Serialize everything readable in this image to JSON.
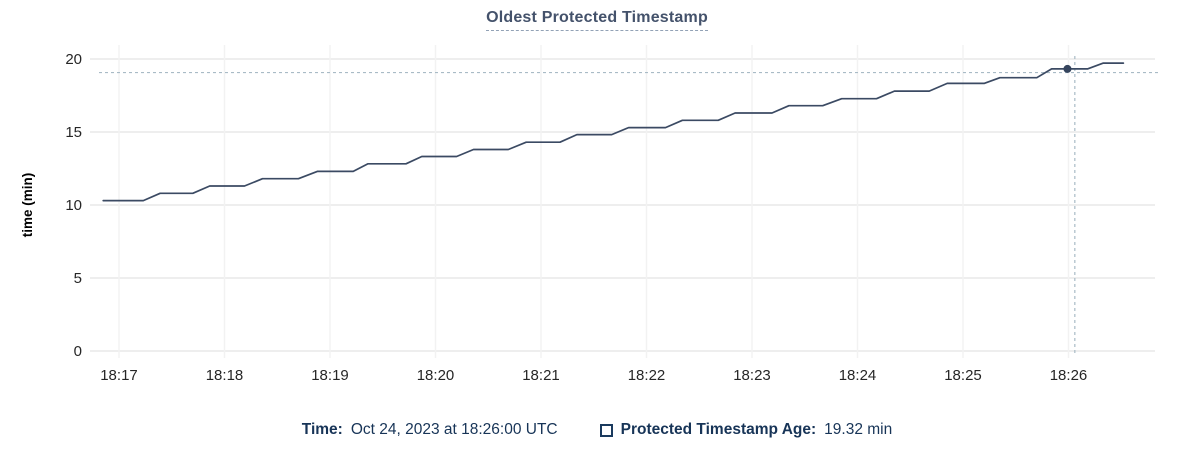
{
  "title": "Oldest Protected Timestamp",
  "y_axis_label": "time (min)",
  "legend": {
    "time_label": "Time:",
    "time_value": "Oct 24, 2023 at 18:26:00 UTC",
    "series_label": "Protected Timestamp Age:",
    "series_value": "19.32 min"
  },
  "colors": {
    "line": "#3b4a63",
    "marker": "#35445d",
    "title_text": "#44526b",
    "legend_text": "#173457",
    "crosshair": "#a9bbc6",
    "grid_horizontal": "#e9e9e9",
    "grid_vertical": "#f2f2f2",
    "tick_text": "#262626",
    "axis_label_text": "#000000"
  },
  "chart_data": {
    "type": "line",
    "title": "Oldest Protected Timestamp",
    "xlabel": "",
    "ylabel": "time (min)",
    "ylim": [
      0,
      20
    ],
    "yticks": [
      0,
      5,
      10,
      15,
      20
    ],
    "xtick_labels": [
      "18:17",
      "18:18",
      "18:19",
      "18:20",
      "18:21",
      "18:22",
      "18:23",
      "18:24",
      "18:25",
      "18:26"
    ],
    "x_unit": "minutes after 18:17 UTC",
    "grid": true,
    "legend_position": "bottom",
    "series": [
      {
        "name": "Protected Timestamp Age",
        "points": [
          [
            -0.15,
            10.3
          ],
          [
            0.23,
            10.3
          ],
          [
            0.39,
            10.8
          ],
          [
            0.7,
            10.8
          ],
          [
            0.86,
            11.3
          ],
          [
            1.19,
            11.3
          ],
          [
            1.36,
            11.8
          ],
          [
            1.7,
            11.8
          ],
          [
            1.88,
            12.3
          ],
          [
            2.22,
            12.3
          ],
          [
            2.36,
            12.82
          ],
          [
            2.72,
            12.82
          ],
          [
            2.87,
            13.32
          ],
          [
            3.2,
            13.32
          ],
          [
            3.36,
            13.8
          ],
          [
            3.69,
            13.8
          ],
          [
            3.86,
            14.3
          ],
          [
            4.18,
            14.3
          ],
          [
            4.34,
            14.82
          ],
          [
            4.67,
            14.82
          ],
          [
            4.83,
            15.3
          ],
          [
            5.18,
            15.3
          ],
          [
            5.34,
            15.8
          ],
          [
            5.68,
            15.8
          ],
          [
            5.84,
            16.3
          ],
          [
            6.19,
            16.3
          ],
          [
            6.35,
            16.8
          ],
          [
            6.67,
            16.8
          ],
          [
            6.85,
            17.28
          ],
          [
            7.18,
            17.28
          ],
          [
            7.35,
            17.8
          ],
          [
            7.68,
            17.8
          ],
          [
            7.85,
            18.33
          ],
          [
            8.2,
            18.33
          ],
          [
            8.35,
            18.72
          ],
          [
            8.7,
            18.72
          ],
          [
            8.84,
            19.32
          ],
          [
            9.18,
            19.32
          ],
          [
            9.33,
            19.72
          ],
          [
            9.52,
            19.72
          ]
        ]
      }
    ],
    "highlight": {
      "point_t": 8.99,
      "point_value": 19.32,
      "point_time_label": "18:26:00",
      "crosshair_t": 9.06,
      "crosshair_value": 19.07
    }
  }
}
